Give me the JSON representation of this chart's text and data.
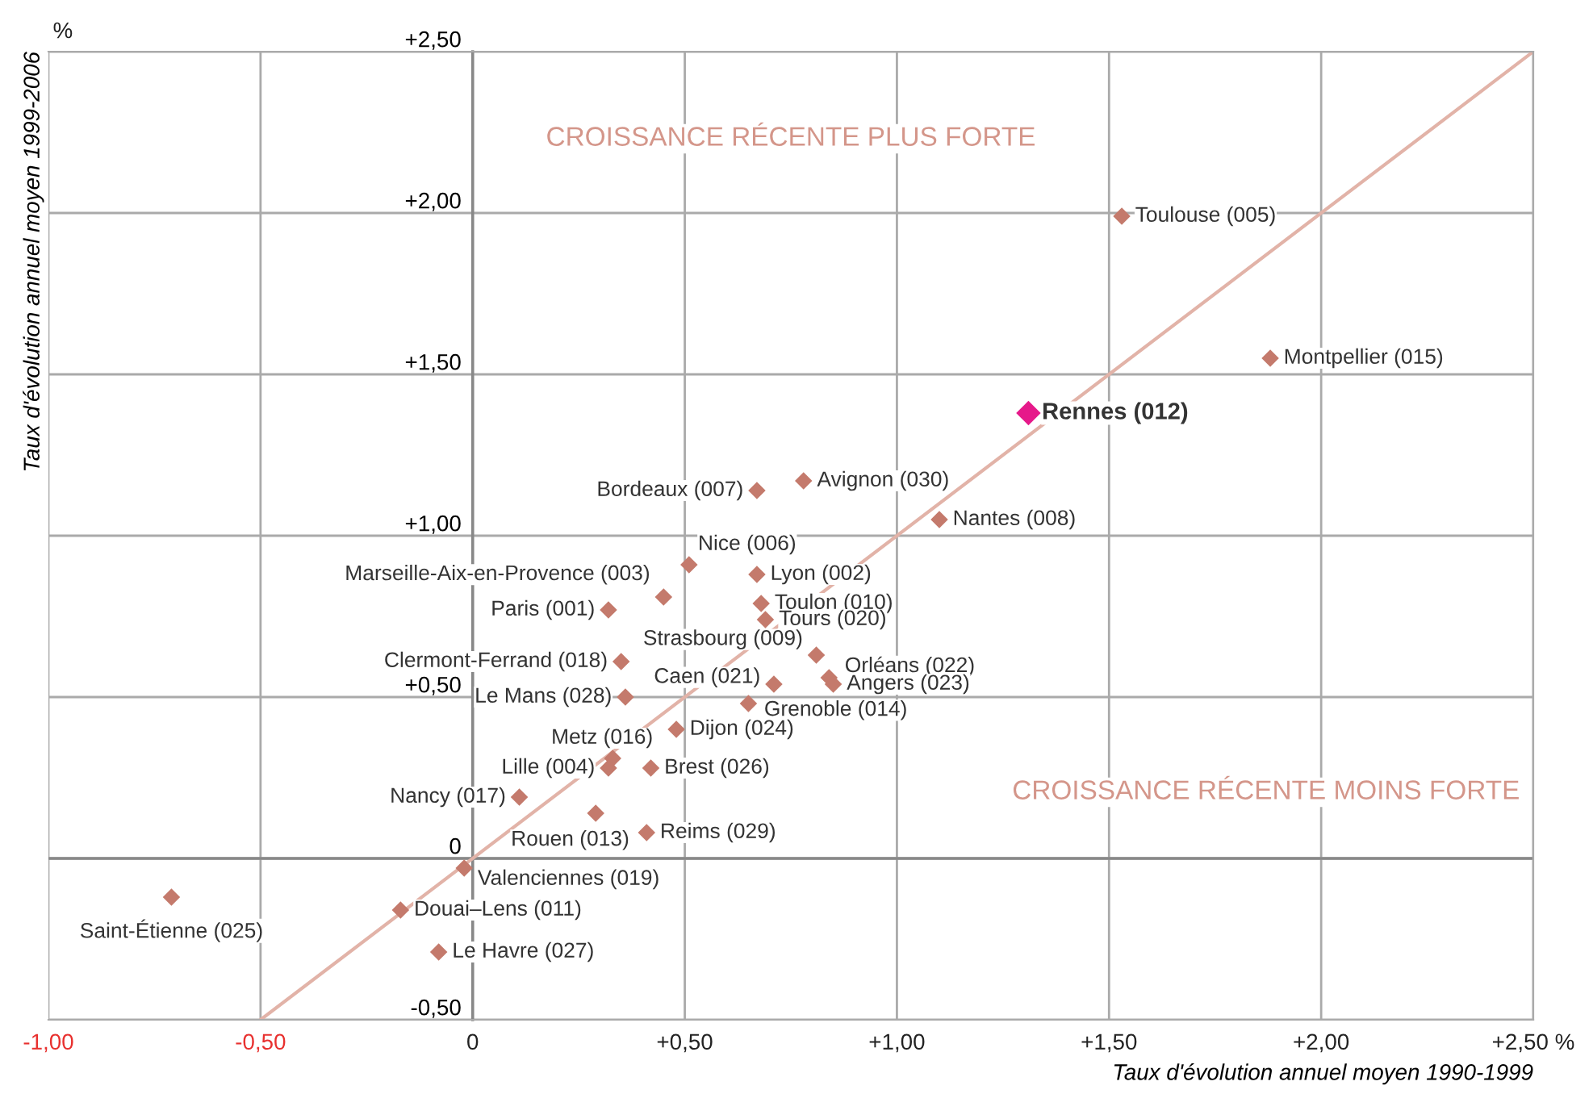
{
  "chart_data": {
    "type": "scatter",
    "xlabel": "Taux d'évolution annuel moyen 1990-1999",
    "ylabel": "Taux d'évolution annuel moyen 1999-2006",
    "xlim": [
      -1.0,
      2.5
    ],
    "ylim": [
      -0.5,
      2.5
    ],
    "xticks": [
      {
        "value": -1.0,
        "label": "-1,00"
      },
      {
        "value": -0.5,
        "label": "-0,50"
      },
      {
        "value": 0,
        "label": "0"
      },
      {
        "value": 0.5,
        "label": "+0,50"
      },
      {
        "value": 1.0,
        "label": "+1,00"
      },
      {
        "value": 1.5,
        "label": "+1,50"
      },
      {
        "value": 2.0,
        "label": "+2,00"
      },
      {
        "value": 2.5,
        "label": "+2,50 %"
      }
    ],
    "yticks": [
      {
        "value": -0.5,
        "label": "-0,50"
      },
      {
        "value": 0,
        "label": "0"
      },
      {
        "value": 0.5,
        "label": "+0,50"
      },
      {
        "value": 1.0,
        "label": "+1,00"
      },
      {
        "value": 1.5,
        "label": "+1,50"
      },
      {
        "value": 2.0,
        "label": "+2,00"
      },
      {
        "value": 2.5,
        "label": "+2,50"
      }
    ],
    "grid": true,
    "marker": "diamond",
    "ref_lines": [
      {
        "axis": "y",
        "value": 0,
        "color": "#888888"
      }
    ],
    "series": [
      {
        "color": "#c47a6c",
        "x": [
          1.53,
          1.88,
          0.78,
          0.67,
          1.1,
          0.51,
          0.67,
          0.45,
          0.68,
          0.32,
          0.69,
          0.81,
          0.35,
          0.84,
          0.85,
          0.71,
          0.36,
          0.65,
          0.48,
          0.33,
          0.32,
          0.42,
          0.11,
          0.29,
          0.41,
          -0.02,
          -0.71,
          -0.17,
          -0.08
        ],
        "values": [
          1.99,
          1.55,
          1.17,
          1.14,
          1.05,
          0.91,
          0.88,
          0.81,
          0.79,
          0.77,
          0.74,
          0.63,
          0.61,
          0.56,
          0.54,
          0.54,
          0.5,
          0.48,
          0.4,
          0.31,
          0.28,
          0.28,
          0.19,
          0.14,
          0.08,
          -0.03,
          -0.12,
          -0.16,
          -0.29
        ]
      },
      {
        "color": "#e6198a",
        "x": [
          1.31
        ],
        "values": [
          1.38
        ]
      },
      {
        "type": "line",
        "marker": "none",
        "color": "#e2b3a8",
        "x": [
          -0.5,
          2.5
        ],
        "values": [
          -0.5,
          2.5
        ]
      }
    ],
    "annotations": [
      "CROISSANCE RÉCENTE PLUS FORTE",
      "CROISSANCE RÉCENTE MOINS FORTE",
      "%",
      {
        "text": "Toulouse (005)",
        "x": 1.53,
        "y": 1.99
      },
      {
        "text": "Montpellier (015)",
        "x": 1.88,
        "y": 1.55
      },
      {
        "text": "Avignon (030)",
        "x": 0.78,
        "y": 1.17
      },
      {
        "text": "Bordeaux (007)",
        "x": 0.67,
        "y": 1.14
      },
      {
        "text": "Nantes (008)",
        "x": 1.1,
        "y": 1.05
      },
      {
        "text": "Nice (006)",
        "x": 0.51,
        "y": 0.91
      },
      {
        "text": "Lyon (002)",
        "x": 0.67,
        "y": 0.88
      },
      {
        "text": "Marseille-Aix-en-Provence (003)",
        "x": 0.45,
        "y": 0.81
      },
      {
        "text": "Toulon (010)",
        "x": 0.68,
        "y": 0.79
      },
      {
        "text": "Paris (001)",
        "x": 0.32,
        "y": 0.77
      },
      {
        "text": "Tours (020)",
        "x": 0.69,
        "y": 0.74
      },
      {
        "text": "Strasbourg (009)",
        "x": 0.81,
        "y": 0.63
      },
      {
        "text": "Clermont-Ferrand (018)",
        "x": 0.35,
        "y": 0.61
      },
      {
        "text": "Orléans (022)",
        "x": 0.84,
        "y": 0.56
      },
      {
        "text": "Angers (023)",
        "x": 0.85,
        "y": 0.54
      },
      {
        "text": "Caen (021)",
        "x": 0.71,
        "y": 0.54
      },
      {
        "text": "Le Mans (028)",
        "x": 0.36,
        "y": 0.5
      },
      {
        "text": "Grenoble (014)",
        "x": 0.65,
        "y": 0.48
      },
      {
        "text": "Dijon (024)",
        "x": 0.48,
        "y": 0.4
      },
      {
        "text": "Metz (016)",
        "x": 0.33,
        "y": 0.31
      },
      {
        "text": "Lille (004)",
        "x": 0.32,
        "y": 0.28
      },
      {
        "text": "Brest (026)",
        "x": 0.42,
        "y": 0.28
      },
      {
        "text": "Nancy (017)",
        "x": 0.11,
        "y": 0.19
      },
      {
        "text": "Rouen (013)",
        "x": 0.29,
        "y": 0.14
      },
      {
        "text": "Reims (029)",
        "x": 0.41,
        "y": 0.08
      },
      {
        "text": "Valenciennes (019)",
        "x": -0.02,
        "y": -0.03
      },
      {
        "text": "Saint-Étienne (025)",
        "x": -0.71,
        "y": -0.12
      },
      {
        "text": "Douai–Lens (011)",
        "x": -0.17,
        "y": -0.16
      },
      {
        "text": "Le Havre (027)",
        "x": -0.08,
        "y": -0.29
      },
      {
        "text": "Rennes (012)",
        "x": 1.31,
        "y": 1.38
      }
    ]
  }
}
